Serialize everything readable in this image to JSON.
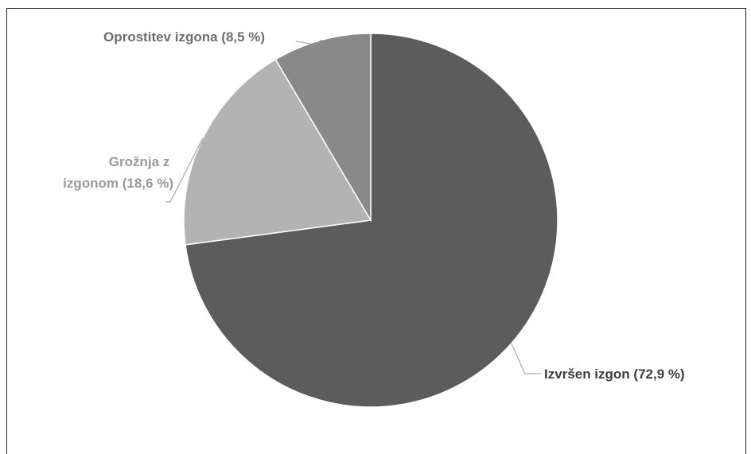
{
  "chart_data": {
    "type": "pie",
    "start_angle_deg": 0,
    "direction": "clockwise",
    "slices": [
      {
        "label": "Izvršen izgon (72,9 %)",
        "name": "Izvršen izgon",
        "value": 72.9,
        "color": "#5c5c5c",
        "label_color": "#3d3d3d"
      },
      {
        "label": "Grožnja z izgonom (18,6 %)",
        "name": "Grožnja z izgonom",
        "value": 18.6,
        "color": "#b3b3b3",
        "label_color": "#9a9a9a"
      },
      {
        "label": "Oprostitev izgona (8,5 %)",
        "name": "Oprostitev izgona",
        "value": 8.5,
        "color": "#898989",
        "label_color": "#6e6e6e"
      }
    ],
    "slice_border_color": "#ffffff",
    "leader_line_color": "#9a9a9a"
  }
}
